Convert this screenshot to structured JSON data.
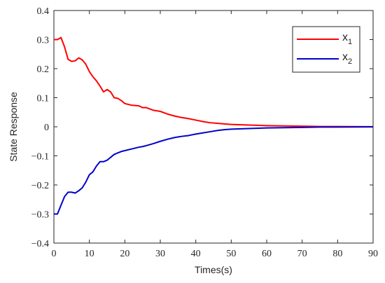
{
  "chart_data": {
    "type": "line",
    "title": "",
    "xlabel": "Times(s)",
    "ylabel": "State Response",
    "xlim": [
      0,
      90
    ],
    "ylim": [
      -0.4,
      0.4
    ],
    "grid": false,
    "legend_position": "top-right",
    "x_ticks": [
      0,
      10,
      20,
      30,
      40,
      50,
      60,
      70,
      80,
      90
    ],
    "y_ticks": [
      -0.4,
      -0.3,
      -0.2,
      -0.1,
      0,
      0.1,
      0.2,
      0.3,
      0.4
    ],
    "x_tick_labels": [
      "0",
      "10",
      "20",
      "30",
      "40",
      "50",
      "60",
      "70",
      "80",
      "90"
    ],
    "y_tick_labels": [
      "−0.4",
      "−0.3",
      "−0.2",
      "−0.1",
      "0",
      "0.1",
      "0.2",
      "0.3",
      "0.4"
    ],
    "series": [
      {
        "name": "x",
        "subscript": "1",
        "color": "#ff0000",
        "x": [
          0,
          1,
          2,
          3,
          4,
          5,
          6,
          7,
          8,
          9,
          10,
          11,
          12,
          13,
          14,
          15,
          16,
          17,
          18,
          19,
          20,
          22,
          24,
          25,
          26,
          28,
          30,
          32,
          34,
          36,
          38,
          40,
          42,
          44,
          46,
          48,
          50,
          55,
          60,
          65,
          70,
          75,
          80,
          85,
          90
        ],
        "y": [
          0.3,
          0.3,
          0.307,
          0.275,
          0.232,
          0.225,
          0.227,
          0.237,
          0.23,
          0.215,
          0.19,
          0.172,
          0.158,
          0.14,
          0.12,
          0.128,
          0.12,
          0.1,
          0.098,
          0.09,
          0.08,
          0.074,
          0.072,
          0.066,
          0.066,
          0.057,
          0.053,
          0.044,
          0.037,
          0.032,
          0.028,
          0.023,
          0.018,
          0.014,
          0.012,
          0.01,
          0.008,
          0.006,
          0.004,
          0.003,
          0.002,
          0.001,
          0.001,
          0.0005,
          0.0003
        ]
      },
      {
        "name": "x",
        "subscript": "2",
        "color": "#0000cc",
        "x": [
          0,
          1,
          2,
          3,
          4,
          5,
          6,
          7,
          8,
          9,
          10,
          11,
          12,
          13,
          14,
          15,
          16,
          17,
          18,
          19,
          20,
          22,
          24,
          25,
          26,
          28,
          30,
          32,
          34,
          36,
          38,
          40,
          42,
          44,
          46,
          48,
          50,
          55,
          60,
          65,
          70,
          75,
          80,
          85,
          90
        ],
        "y": [
          -0.3,
          -0.3,
          -0.27,
          -0.24,
          -0.225,
          -0.225,
          -0.228,
          -0.22,
          -0.21,
          -0.19,
          -0.165,
          -0.155,
          -0.135,
          -0.12,
          -0.12,
          -0.115,
          -0.105,
          -0.095,
          -0.09,
          -0.085,
          -0.082,
          -0.076,
          -0.07,
          -0.068,
          -0.065,
          -0.058,
          -0.05,
          -0.043,
          -0.037,
          -0.033,
          -0.03,
          -0.025,
          -0.021,
          -0.017,
          -0.013,
          -0.01,
          -0.008,
          -0.006,
          -0.004,
          -0.003,
          -0.002,
          -0.001,
          -0.001,
          -0.0005,
          -0.0003
        ]
      }
    ]
  }
}
